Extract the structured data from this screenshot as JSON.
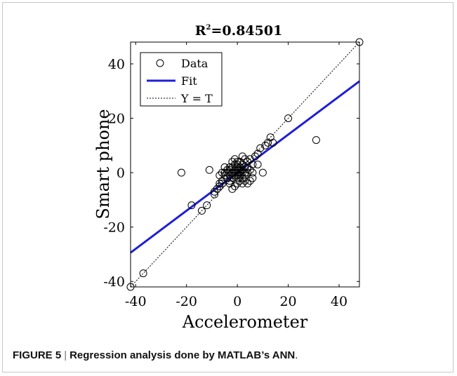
{
  "chart_data": {
    "type": "scatter",
    "title_prefix": "R",
    "title_superscript": "2",
    "title_value": "=0.84501",
    "xlabel": "Accelerometer",
    "ylabel": "Smart phone",
    "xlim": [
      -42,
      48
    ],
    "ylim": [
      -42,
      48
    ],
    "xticks": [
      -40,
      -20,
      0,
      20,
      40
    ],
    "yticks": [
      -40,
      -20,
      0,
      20,
      40
    ],
    "xtick_labels": [
      "-40",
      "-20",
      "0",
      "20",
      "40"
    ],
    "ytick_labels": [
      "-40",
      "-20",
      "0",
      "20",
      "40"
    ],
    "legend_position": "top-left",
    "legend": {
      "data": "Data",
      "fit": "Fit",
      "identity": "Y = T"
    },
    "colors": {
      "data": "#000000",
      "fit": "#1f1fd6",
      "identity": "#000000"
    },
    "fit": {
      "slope": 0.7,
      "intercept": 0.0
    },
    "identity": {
      "slope": 1,
      "intercept": 0
    },
    "data_points": [
      [
        48,
        48
      ],
      [
        -42,
        -42
      ],
      [
        -37,
        -37
      ],
      [
        20,
        20
      ],
      [
        31,
        12
      ],
      [
        -22,
        0
      ],
      [
        -18,
        -12
      ],
      [
        -14,
        -14
      ],
      [
        -12,
        -12
      ],
      [
        -11,
        1
      ],
      [
        -9,
        -8
      ],
      [
        -9,
        -7
      ],
      [
        -8,
        -6
      ],
      [
        -7,
        -5
      ],
      [
        -7,
        -1
      ],
      [
        -6,
        -4
      ],
      [
        -6,
        0
      ],
      [
        -5,
        -1
      ],
      [
        -5,
        0
      ],
      [
        -4,
        -2
      ],
      [
        -4,
        0
      ],
      [
        -3,
        -3
      ],
      [
        -3,
        -1
      ],
      [
        -3,
        1
      ],
      [
        -2,
        -6
      ],
      [
        -2,
        -2
      ],
      [
        -2,
        0
      ],
      [
        -2,
        2
      ],
      [
        -1,
        -5
      ],
      [
        -1,
        -1
      ],
      [
        -1,
        0
      ],
      [
        -1,
        1
      ],
      [
        -1,
        3
      ],
      [
        0,
        -4
      ],
      [
        0,
        -2
      ],
      [
        0,
        -1
      ],
      [
        0,
        0
      ],
      [
        0,
        1
      ],
      [
        0,
        2
      ],
      [
        0,
        4
      ],
      [
        1,
        -1
      ],
      [
        1,
        0
      ],
      [
        1,
        1
      ],
      [
        1,
        2
      ],
      [
        2,
        -2
      ],
      [
        2,
        0
      ],
      [
        2,
        1
      ],
      [
        2,
        3
      ],
      [
        2,
        6
      ],
      [
        3,
        -3
      ],
      [
        3,
        0
      ],
      [
        3,
        2
      ],
      [
        4,
        -4
      ],
      [
        4,
        0
      ],
      [
        4,
        4
      ],
      [
        5,
        1
      ],
      [
        5,
        5
      ],
      [
        6,
        0
      ],
      [
        6,
        3
      ],
      [
        7,
        6
      ],
      [
        8,
        7
      ],
      [
        9,
        9
      ],
      [
        10,
        0
      ],
      [
        11,
        10
      ],
      [
        12,
        11
      ],
      [
        13,
        13
      ],
      [
        14,
        11
      ],
      [
        -3,
        -4
      ],
      [
        -4,
        1
      ],
      [
        3,
        5
      ],
      [
        -1,
        5
      ],
      [
        1,
        -3
      ],
      [
        6,
        -2
      ],
      [
        -6,
        -3
      ],
      [
        4,
        2
      ],
      [
        -2,
        4
      ],
      [
        2,
        -4
      ],
      [
        0,
        3
      ],
      [
        -3,
        2
      ],
      [
        3,
        -1
      ],
      [
        1,
        4
      ],
      [
        -5,
        2
      ],
      [
        5,
        -3
      ],
      [
        8,
        3
      ],
      [
        -7,
        -4
      ]
    ]
  },
  "caption": {
    "figure_label": "FIGURE 5",
    "separator": "|",
    "title": "Regression analysis done by MATLAB’s ANN",
    "trailing": "."
  }
}
